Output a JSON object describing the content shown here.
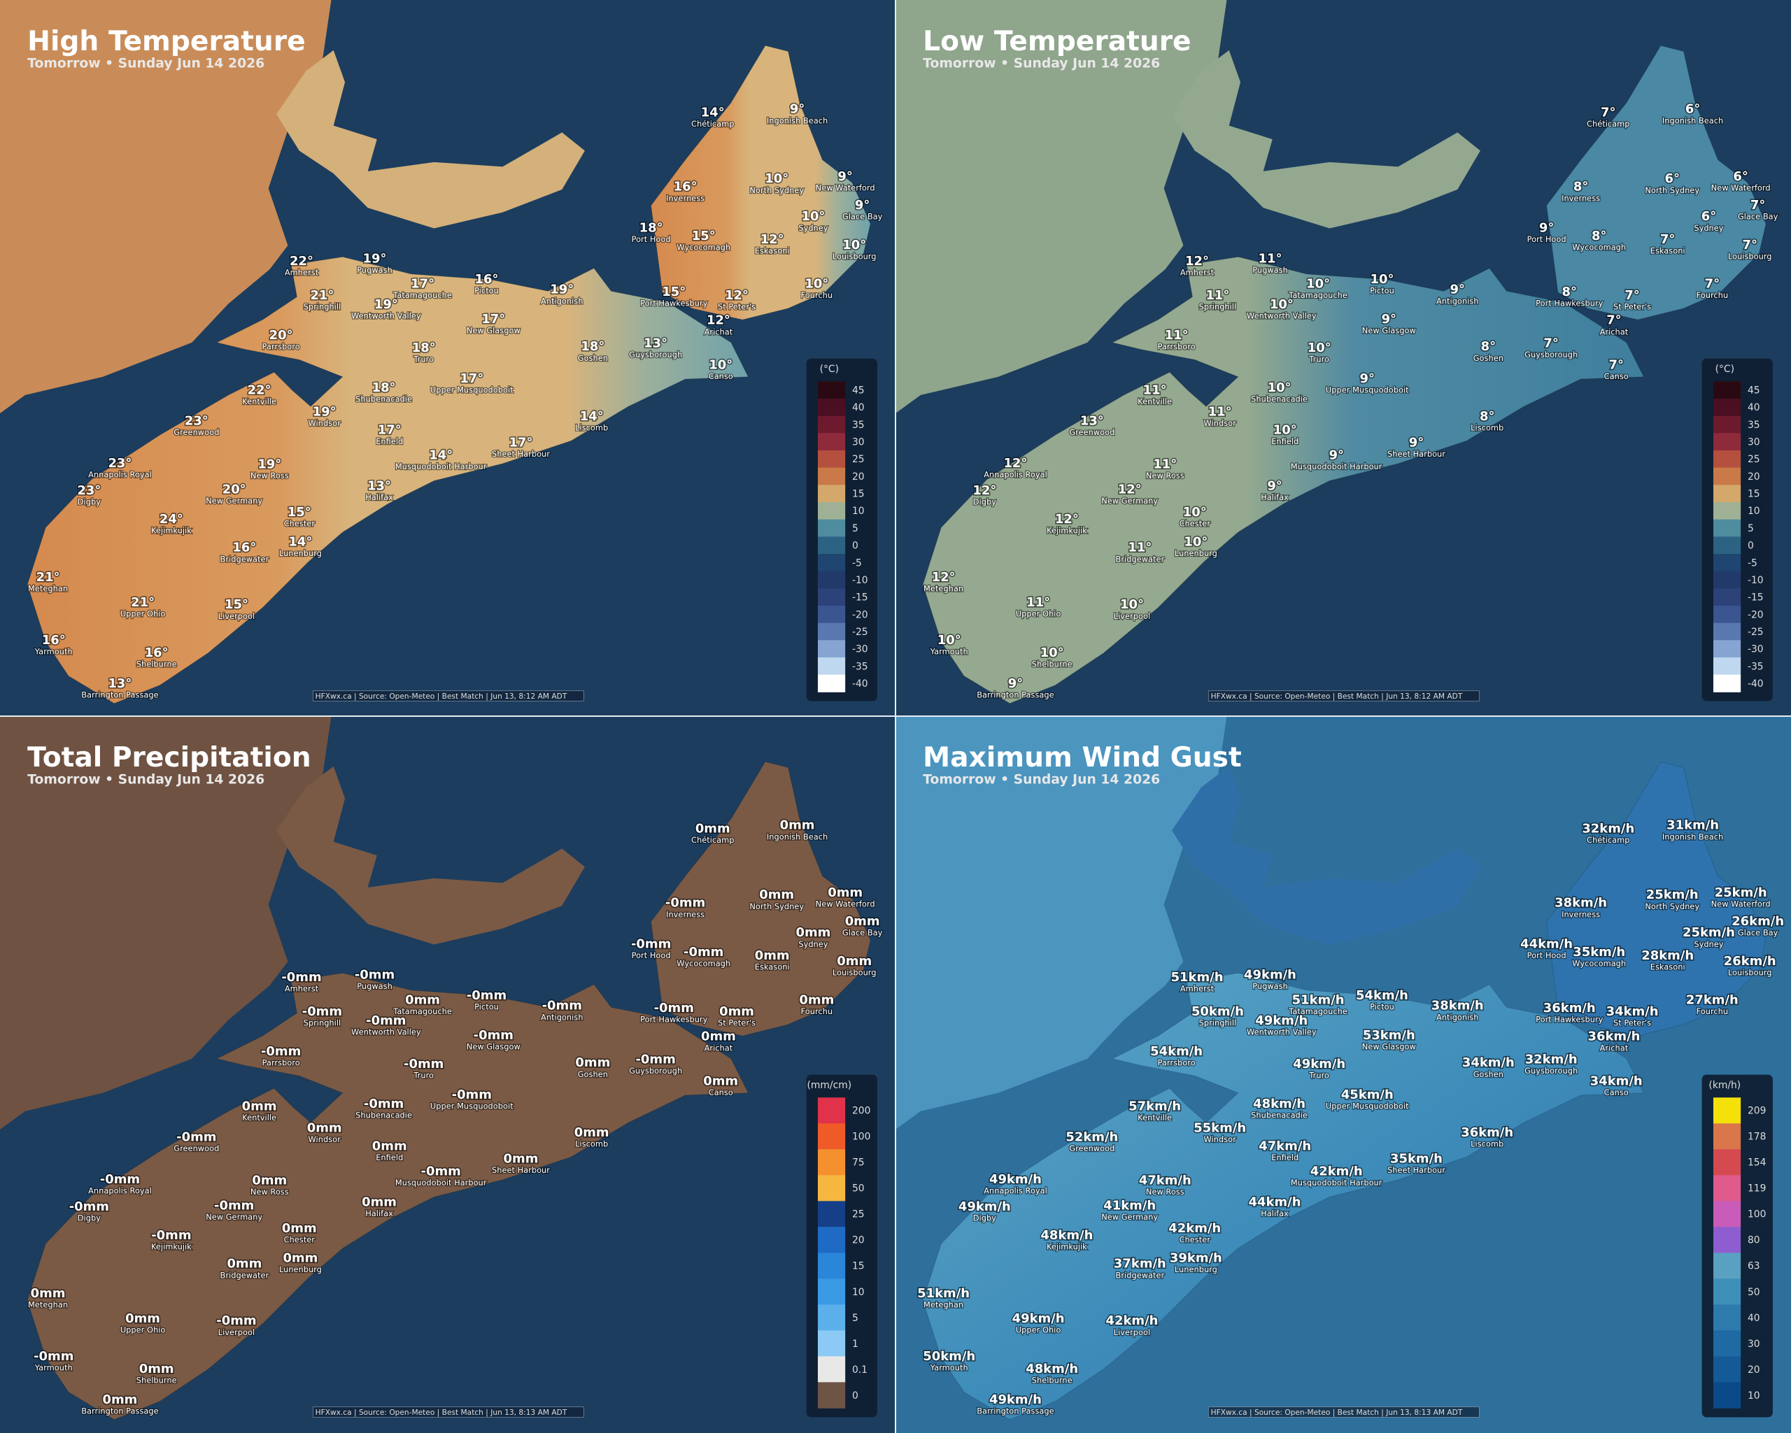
{
  "places": [
    "Chéticamp",
    "Ingonish Beach",
    "Inverness",
    "North Sydney",
    "New Waterford",
    "Glace Bay",
    "Sydney",
    "Port Hood",
    "Wycocomagh",
    "Eskasoni",
    "Louisbourg",
    "Amherst",
    "Pugwash",
    "Tatamagouche",
    "Pictou",
    "Antigonish",
    "Springhill",
    "Wentworth Valley",
    "Port Hawkesbury",
    "St Peter's",
    "Fourchu",
    "New Glasgow",
    "Arichat",
    "Parrsboro",
    "Truro",
    "Goshen",
    "Guysborough",
    "Canso",
    "Kentville",
    "Shubenacadie",
    "Upper Musquodoboit",
    "Windsor",
    "Liscomb",
    "Greenwood",
    "Enfield",
    "Sheet Harbour",
    "Musquodoboit Harbour",
    "Annapolis Royal",
    "New Ross",
    "Digby",
    "New Germany",
    "Halifax",
    "Chester",
    "Kejimkujik",
    "Lunenburg",
    "Bridgewater",
    "Meteghan",
    "Upper Ohio",
    "Liverpool",
    "Yarmouth",
    "Shelburne",
    "Barrington Passage"
  ],
  "panels": [
    {
      "title": "High Temperature",
      "subtitle": "Tomorrow • Sunday Jun 14 2026",
      "values": [
        "14°",
        "9°",
        "16°",
        "10°",
        "9°",
        "9°",
        "10°",
        "18°",
        "15°",
        "12°",
        "10°",
        "22°",
        "19°",
        "17°",
        "16°",
        "19°",
        "21°",
        "19°",
        "15°",
        "12°",
        "10°",
        "17°",
        "12°",
        "20°",
        "18°",
        "18°",
        "13°",
        "10°",
        "22°",
        "18°",
        "17°",
        "19°",
        "14°",
        "23°",
        "17°",
        "17°",
        "14°",
        "23°",
        "19°",
        "23°",
        "20°",
        "13°",
        "15°",
        "24°",
        "14°",
        "16°",
        "21°",
        "21°",
        "15°",
        "16°",
        "16°",
        "13°"
      ],
      "legend": {
        "title": "(°C)",
        "ticks": [
          45,
          40,
          35,
          30,
          25,
          20,
          15,
          10,
          5,
          0,
          -5,
          -10,
          -15,
          -20,
          -25,
          -30,
          -35,
          -40
        ]
      },
      "credit": "HFXwx.ca | Source: Open-Meteo | Best Match | Jun 13, 8:12 AM ADT"
    },
    {
      "title": "Low Temperature",
      "subtitle": "Tomorrow • Sunday Jun 14 2026",
      "values": [
        "7°",
        "6°",
        "8°",
        "6°",
        "6°",
        "7°",
        "6°",
        "9°",
        "8°",
        "7°",
        "7°",
        "12°",
        "11°",
        "10°",
        "10°",
        "9°",
        "11°",
        "10°",
        "8°",
        "7°",
        "7°",
        "9°",
        "7°",
        "11°",
        "10°",
        "8°",
        "7°",
        "7°",
        "11°",
        "10°",
        "9°",
        "11°",
        "8°",
        "13°",
        "10°",
        "9°",
        "9°",
        "12°",
        "11°",
        "12°",
        "12°",
        "9°",
        "10°",
        "12°",
        "10°",
        "11°",
        "12°",
        "11°",
        "10°",
        "10°",
        "10°",
        "9°"
      ],
      "legend": {
        "title": "(°C)",
        "ticks": [
          45,
          40,
          35,
          30,
          25,
          20,
          15,
          10,
          5,
          0,
          -5,
          -10,
          -15,
          -20,
          -25,
          -30,
          -35,
          -40
        ]
      },
      "credit": "HFXwx.ca | Source: Open-Meteo | Best Match | Jun 13, 8:12 AM ADT"
    },
    {
      "title": "Total Precipitation",
      "subtitle": "Tomorrow • Sunday Jun 14 2026",
      "values": [
        "0mm",
        "0mm",
        "-0mm",
        "0mm",
        "0mm",
        "0mm",
        "0mm",
        "-0mm",
        "-0mm",
        "0mm",
        "0mm",
        "-0mm",
        "-0mm",
        "0mm",
        "-0mm",
        "-0mm",
        "-0mm",
        "-0mm",
        "-0mm",
        "0mm",
        "0mm",
        "-0mm",
        "0mm",
        "-0mm",
        "-0mm",
        "0mm",
        "-0mm",
        "0mm",
        "0mm",
        "-0mm",
        "-0mm",
        "0mm",
        "0mm",
        "-0mm",
        "0mm",
        "0mm",
        "-0mm",
        "-0mm",
        "0mm",
        "-0mm",
        "-0mm",
        "0mm",
        "0mm",
        "-0mm",
        "0mm",
        "0mm",
        "0mm",
        "0mm",
        "-0mm",
        "-0mm",
        "0mm",
        "0mm"
      ],
      "legend": {
        "title": "(mm/cm)",
        "ticks": [
          200,
          100,
          75,
          50,
          25,
          20,
          15,
          10,
          5,
          1,
          0.1,
          0
        ]
      },
      "credit": "HFXwx.ca | Source: Open-Meteo | Best Match | Jun 13, 8:13 AM ADT"
    },
    {
      "title": "Maximum Wind Gust",
      "subtitle": "Tomorrow • Sunday Jun 14 2026",
      "values": [
        "32km/h",
        "31km/h",
        "38km/h",
        "25km/h",
        "25km/h",
        "26km/h",
        "25km/h",
        "44km/h",
        "35km/h",
        "28km/h",
        "26km/h",
        "51km/h",
        "49km/h",
        "51km/h",
        "54km/h",
        "38km/h",
        "50km/h",
        "49km/h",
        "36km/h",
        "34km/h",
        "27km/h",
        "53km/h",
        "36km/h",
        "54km/h",
        "49km/h",
        "34km/h",
        "32km/h",
        "34km/h",
        "57km/h",
        "48km/h",
        "45km/h",
        "55km/h",
        "36km/h",
        "52km/h",
        "47km/h",
        "35km/h",
        "42km/h",
        "49km/h",
        "47km/h",
        "49km/h",
        "41km/h",
        "44km/h",
        "42km/h",
        "48km/h",
        "39km/h",
        "37km/h",
        "51km/h",
        "49km/h",
        "42km/h",
        "50km/h",
        "48km/h",
        "49km/h"
      ],
      "legend": {
        "title": "(km/h)",
        "ticks": [
          209,
          178,
          154,
          119,
          100,
          80,
          63,
          50,
          40,
          30,
          20,
          10
        ]
      },
      "credit": "HFXwx.ca | Source: Open-Meteo | Best Match | Jun 13, 8:13 AM ADT"
    }
  ]
}
